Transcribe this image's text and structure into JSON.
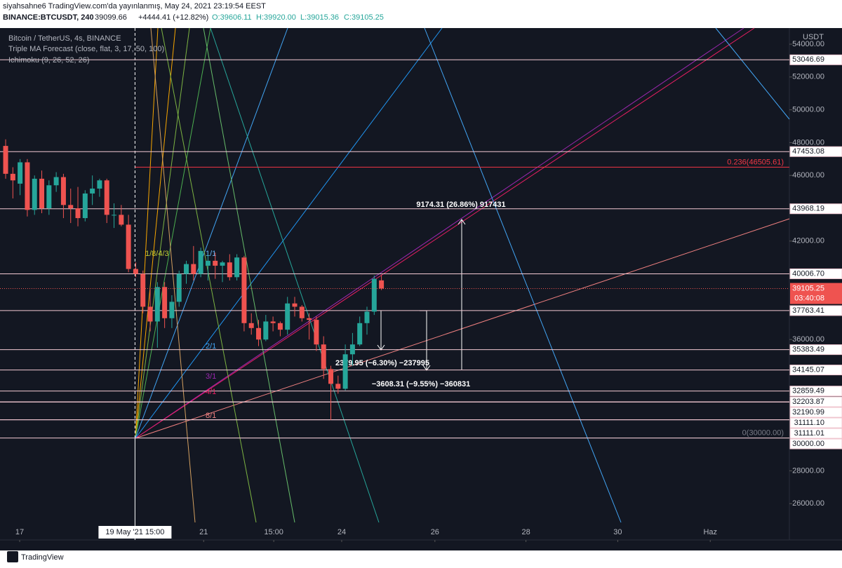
{
  "header": {
    "line1": "siyahsahne6 TradingView.com'da yayınlanmış, May 24, 2021 23:19:54 EEST",
    "symbol": "BINANCE:BTCUSDT, 240",
    "last": "39099.66",
    "change": "+4444.41 (+12.82%)",
    "ohlc": [
      "O:39606.11",
      "H:39920.00",
      "L:39015.36",
      "C:39105.25"
    ]
  },
  "legend": [
    "Bitcoin / TetherUS, 4s, BINANCE",
    "Triple MA Forecast (close, flat, 3, 17, 50, 100)",
    "Ichimoku (9, 26, 52, 26)"
  ],
  "footer": "TradingView",
  "chart_data": {
    "type": "candlestick",
    "price_axis_title": "USDT",
    "up_color": "#26a69a",
    "down_color": "#ef5350",
    "open": [
      47800,
      46100,
      45500,
      46800,
      43900,
      45800,
      44000,
      45400,
      45900,
      44200,
      44000,
      43400,
      44900,
      45200,
      45700,
      43600,
      43600,
      43000,
      40300,
      40000,
      38000,
      37100,
      39200,
      37300,
      38300,
      40000,
      40600,
      40000,
      40500,
      40800,
      40500,
      40700,
      39800,
      41000,
      37000,
      36700,
      36000,
      37100,
      37000,
      36600,
      38200,
      38000,
      37300,
      37200,
      35700,
      34200,
      33300,
      33000,
      35100,
      35700,
      37000,
      37700,
      39606.11
    ],
    "high": [
      48200,
      46500,
      47000,
      47000,
      46000,
      46300,
      45700,
      46200,
      46100,
      45200,
      45300,
      45100,
      46000,
      45800,
      45800,
      44300,
      44200,
      43600,
      40700,
      40200,
      39100,
      39500,
      39500,
      38700,
      40200,
      40800,
      41700,
      41600,
      41200,
      41300,
      40800,
      41200,
      41200,
      41100,
      37600,
      37200,
      37500,
      37400,
      37100,
      38600,
      38600,
      38100,
      37600,
      37400,
      36200,
      34400,
      33800,
      35700,
      36400,
      37400,
      38000,
      39900,
      39920
    ],
    "low": [
      45800,
      44600,
      44800,
      43500,
      43600,
      43700,
      43600,
      45000,
      43400,
      43100,
      42900,
      43200,
      44200,
      44700,
      43100,
      42800,
      42900,
      40100,
      39800,
      37600,
      36500,
      35500,
      36700,
      36700,
      38000,
      39400,
      39600,
      39800,
      39600,
      39700,
      39500,
      39600,
      39600,
      36500,
      36300,
      35600,
      35900,
      36500,
      36200,
      36300,
      37400,
      37100,
      36000,
      35300,
      33600,
      31100,
      32700,
      32900,
      34400,
      35600,
      36300,
      37500,
      39015.36
    ],
    "close": [
      46100,
      45700,
      46800,
      43900,
      45800,
      44000,
      45400,
      45900,
      44200,
      44000,
      43400,
      44900,
      45200,
      45700,
      43600,
      43600,
      43000,
      40300,
      40000,
      38000,
      37100,
      39200,
      37300,
      38300,
      40000,
      40600,
      40000,
      41400,
      40800,
      40500,
      40700,
      39800,
      41000,
      37000,
      36700,
      36000,
      37100,
      37000,
      36600,
      38200,
      38000,
      37300,
      37200,
      35700,
      34200,
      33300,
      33000,
      35100,
      35700,
      37000,
      37700,
      39700,
      39105.25
    ],
    "xlim": [
      -0.78,
      108.45
    ],
    "xticks": [
      {
        "value": 1.94,
        "label": "17"
      },
      {
        "value": 27.4,
        "label": "21"
      },
      {
        "value": 37.1,
        "label": "15:00"
      },
      {
        "value": 46.5,
        "label": "24"
      },
      {
        "value": 59.4,
        "label": "26"
      },
      {
        "value": 72.0,
        "label": "28"
      },
      {
        "value": 84.7,
        "label": "30"
      },
      {
        "value": 97.5,
        "label": "Haz"
      }
    ],
    "crosshair": {
      "value": 17.9,
      "label": "19 May '21  15:00"
    },
    "ylim": [
      23786,
      54983
    ],
    "yticks": [
      {
        "value": 54000,
        "label": "54000.00"
      },
      {
        "value": 52000,
        "label": "52000.00"
      },
      {
        "value": 50000,
        "label": "50000.00"
      },
      {
        "value": 48000,
        "label": "48000.00"
      },
      {
        "value": 46000,
        "label": "46000.00"
      },
      {
        "value": 42000,
        "label": "42000.00"
      },
      {
        "value": 36000,
        "label": "36000.00"
      },
      {
        "value": 28000,
        "label": "28000.00"
      },
      {
        "value": 26000,
        "label": "26000.00"
      }
    ],
    "levels": [
      53046.69,
      47453.08,
      43968.19,
      {
        "value": 40006.7,
        "label": "40006.70"
      },
      37763.41,
      35383.49,
      34145.07,
      32859.49,
      32203.87,
      32190.99,
      {
        "value": 31111.1,
        "label": "31111.10"
      },
      31111.01,
      {
        "value": 30000,
        "label": "30000.00"
      }
    ],
    "level_color": "#f3c9d3",
    "last_price": {
      "value": 39105.25,
      "label": "39105.25",
      "countdown": "03:40:08"
    },
    "fib_line": {
      "value": 46505.61,
      "label": "0.236(46505.61)",
      "color": "#f23645"
    },
    "fib_zero": {
      "value": 30000,
      "label": "0(30000.00)"
    },
    "fan_labels": [
      "1/8/4/3",
      "1/1",
      "2/1",
      "3/1",
      "4/1",
      "8/1"
    ],
    "measurements": [
      "9174.31 (26.86%) 917431",
      "2379.95 (−6.30%) −237995",
      "−3608.31 (−9.55%) −360831"
    ]
  }
}
